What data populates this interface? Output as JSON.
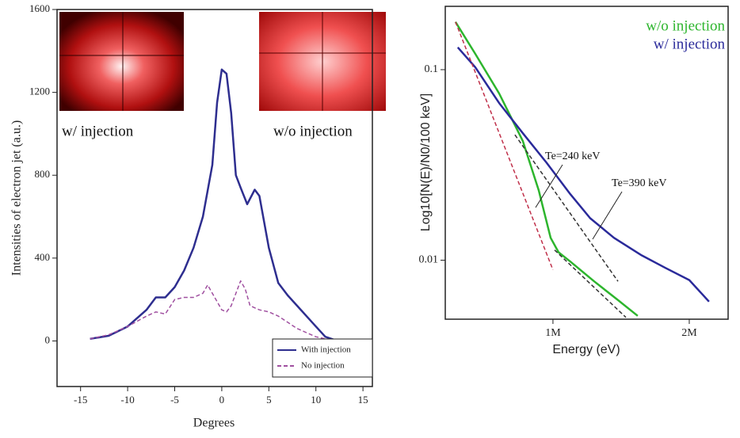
{
  "chart_data": [
    {
      "type": "line",
      "x_label": "Degrees",
      "y_label": "Intensities of electron jet (a.u.)",
      "annotations": [
        {
          "text": "w/ injection"
        },
        {
          "text": "w/o injection"
        }
      ],
      "xlim": [
        -17.5,
        16
      ],
      "ylim": [
        -220,
        1600
      ],
      "xticks": [
        -15,
        -10,
        -5,
        0,
        5,
        10,
        15
      ],
      "yticks": [
        0,
        400,
        800,
        1200,
        1600
      ],
      "legend": "lower right",
      "series": [
        {
          "name": "With injection",
          "color": "#2e2e8f",
          "dash": false,
          "x": [
            -14,
            -12,
            -10,
            -8,
            -7,
            -6,
            -5,
            -4,
            -3,
            -2,
            -1,
            -0.5,
            0,
            0.5,
            1,
            1.5,
            2,
            2.7,
            3.5,
            4,
            5,
            6,
            7,
            8,
            9,
            10,
            11,
            12,
            14
          ],
          "values": [
            10,
            25,
            70,
            150,
            210,
            210,
            260,
            340,
            450,
            600,
            850,
            1150,
            1310,
            1290,
            1100,
            800,
            740,
            660,
            730,
            700,
            450,
            280,
            220,
            170,
            120,
            70,
            20,
            5,
            0
          ]
        },
        {
          "name": "No injection",
          "color": "#a050a0",
          "dash": true,
          "x": [
            -14,
            -12,
            -10,
            -8,
            -7,
            -6,
            -5,
            -4,
            -3,
            -2,
            -1.5,
            -1,
            -0.5,
            0,
            0.5,
            1,
            2,
            2.5,
            3,
            4,
            5,
            6,
            7,
            8,
            9,
            10,
            11,
            12,
            14
          ],
          "values": [
            10,
            30,
            70,
            120,
            140,
            130,
            200,
            210,
            210,
            230,
            270,
            230,
            190,
            150,
            140,
            170,
            290,
            250,
            170,
            150,
            140,
            120,
            90,
            60,
            40,
            20,
            10,
            5,
            0
          ]
        }
      ]
    },
    {
      "type": "line",
      "x_label": "Energy (eV)",
      "y_label": "Log10[N(E)/N0/100 keV]",
      "annotations": [
        {
          "text": "Te=240 keV"
        },
        {
          "text": "Te=390 keV"
        }
      ],
      "xlim": [
        210000,
        2285000
      ],
      "ylim": [
        0.0049,
        0.215
      ],
      "ylog": true,
      "xticks": [
        {
          "value": 1000000,
          "label": "1M"
        },
        {
          "value": 2000000,
          "label": "2M"
        }
      ],
      "yticks": [
        0.01,
        0.1
      ],
      "legend": "upper right",
      "series": [
        {
          "name": "w/o injection",
          "color": "#2db52d",
          "dash": false,
          "x": [
            285000,
            430000,
            605000,
            779000,
            895000,
            983000,
            1041000,
            1128000,
            1302000,
            1477000,
            1622000
          ],
          "values": [
            0.178,
            0.121,
            0.075,
            0.0422,
            0.0233,
            0.0131,
            0.011,
            0.00983,
            0.00774,
            0.00617,
            0.0051
          ]
        },
        {
          "name": "w/ injection",
          "color": "#2a2a9a",
          "dash": false,
          "x": [
            302000,
            430000,
            605000,
            779000,
            953000,
            1128000,
            1273000,
            1448000,
            1651000,
            1826000,
            2000000,
            2145000
          ],
          "values": [
            0.131,
            0.103,
            0.0668,
            0.0464,
            0.0325,
            0.0222,
            0.0166,
            0.0131,
            0.0106,
            0.0091,
            0.00786,
            0.00606
          ]
        },
        {
          "color": "#c0304a",
          "dash": true,
          "x": [
            285000,
            1000000
          ],
          "values": [
            0.178,
            0.0089
          ]
        },
        {
          "color": "#333333",
          "dash": true,
          "x": [
            1012000,
            1535000
          ],
          "values": [
            0.0113,
            0.00501
          ]
        },
        {
          "color": "#333333",
          "dash": true,
          "x": [
            721000,
            1477000
          ],
          "values": [
            0.0455,
            0.00774
          ]
        }
      ]
    }
  ]
}
